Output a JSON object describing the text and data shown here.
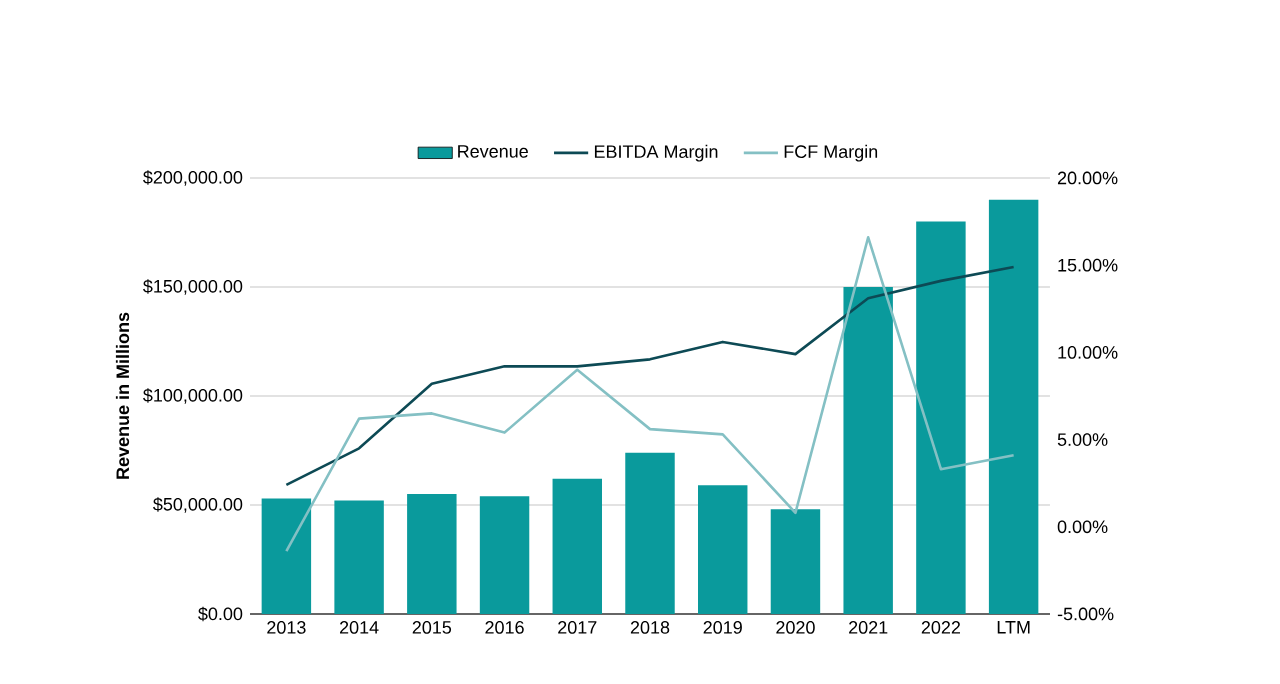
{
  "chart_data": {
    "type": "bar",
    "ylabel": "Revenue in Millions",
    "categories": [
      "2013",
      "2014",
      "2015",
      "2016",
      "2017",
      "2018",
      "2019",
      "2020",
      "2021",
      "2022",
      "LTM"
    ],
    "series": [
      {
        "name": "Revenue",
        "color": "#0a9a9c",
        "values": [
          53000,
          52000,
          55000,
          54000,
          62000,
          74000,
          59000,
          48000,
          150000,
          180000,
          190000
        ]
      },
      {
        "name": "EBITDA Margin",
        "type": "line",
        "axis": "y2",
        "color": "#0d4a55",
        "values": [
          2.4,
          4.5,
          8.2,
          9.2,
          9.2,
          9.6,
          10.6,
          9.9,
          13.1,
          14.1,
          14.9
        ]
      },
      {
        "name": "FCF Margin",
        "type": "line",
        "axis": "y2",
        "color": "#84c0c4",
        "values": [
          -1.4,
          6.2,
          6.5,
          5.4,
          9.0,
          5.6,
          5.3,
          0.8,
          16.6,
          3.3,
          4.1
        ]
      }
    ],
    "ylim": [
      0,
      200000
    ],
    "yticks": [
      {
        "value": 0,
        "label": "$0.00"
      },
      {
        "value": 50000,
        "label": "$50,000.00"
      },
      {
        "value": 100000,
        "label": "$100,000.00"
      },
      {
        "value": 150000,
        "label": "$150,000.00"
      },
      {
        "value": 200000,
        "label": "$200,000.00"
      }
    ],
    "y2lim": [
      -5,
      20
    ],
    "y2ticks": [
      {
        "value": -5,
        "label": "-5.00%"
      },
      {
        "value": 0,
        "label": "0.00%"
      },
      {
        "value": 5,
        "label": "5.00%"
      },
      {
        "value": 10,
        "label": "10.00%"
      },
      {
        "value": 15,
        "label": "15.00%"
      },
      {
        "value": 20,
        "label": "20.00%"
      }
    ],
    "grid": "y",
    "legend": "top",
    "marker": "none",
    "line_style": "solid"
  }
}
